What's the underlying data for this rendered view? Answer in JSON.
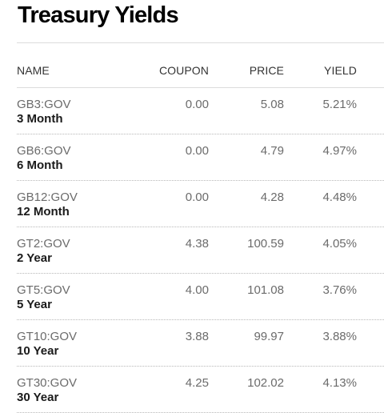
{
  "title": "Treasury Yields",
  "columns": {
    "name": "NAME",
    "coupon": "COUPON",
    "price": "PRICE",
    "yield": "YIELD"
  },
  "rows": [
    {
      "ticker": "GB3:GOV",
      "term": "3 Month",
      "coupon": "0.00",
      "price": "5.08",
      "yield": "5.21%"
    },
    {
      "ticker": "GB6:GOV",
      "term": "6 Month",
      "coupon": "0.00",
      "price": "4.79",
      "yield": "4.97%"
    },
    {
      "ticker": "GB12:GOV",
      "term": "12 Month",
      "coupon": "0.00",
      "price": "4.28",
      "yield": "4.48%"
    },
    {
      "ticker": "GT2:GOV",
      "term": "2 Year",
      "coupon": "4.38",
      "price": "100.59",
      "yield": "4.05%"
    },
    {
      "ticker": "GT5:GOV",
      "term": "5 Year",
      "coupon": "4.00",
      "price": "101.08",
      "yield": "3.76%"
    },
    {
      "ticker": "GT10:GOV",
      "term": "10 Year",
      "coupon": "3.88",
      "price": "99.97",
      "yield": "3.88%"
    },
    {
      "ticker": "GT30:GOV",
      "term": "30 Year",
      "coupon": "4.25",
      "price": "102.02",
      "yield": "4.13%"
    }
  ]
}
